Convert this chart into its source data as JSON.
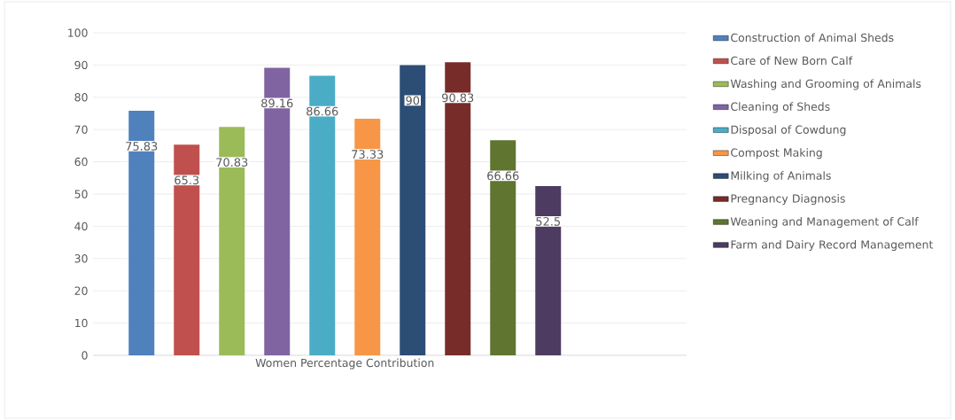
{
  "chart_data": {
    "type": "bar",
    "categories": [
      "Women Percentage Contribution"
    ],
    "series": [
      {
        "name": "Construction of Animal Sheds",
        "color": "#4f81bd",
        "values": [
          75.83
        ]
      },
      {
        "name": "Care of New Born Calf",
        "color": "#c0504d",
        "values": [
          65.3
        ]
      },
      {
        "name": "Washing and Grooming of Animals",
        "color": "#9bbb59",
        "values": [
          70.83
        ]
      },
      {
        "name": "Cleaning of Sheds",
        "color": "#8064a2",
        "values": [
          89.16
        ]
      },
      {
        "name": "Disposal of Cowdung",
        "color": "#4bacc6",
        "values": [
          86.66
        ]
      },
      {
        "name": "Compost Making",
        "color": "#f79646",
        "values": [
          73.33
        ]
      },
      {
        "name": "Milking of Animals",
        "color": "#2c4d75",
        "values": [
          90
        ]
      },
      {
        "name": "Pregnancy Diagnosis",
        "color": "#772c2a",
        "values": [
          90.83
        ]
      },
      {
        "name": "Weaning and Management of Calf",
        "color": "#5f7530",
        "values": [
          66.66
        ]
      },
      {
        "name": "Farm and Dairy Record Management",
        "color": "#4d3b62",
        "values": [
          52.5
        ]
      }
    ],
    "ylim": [
      0,
      100
    ],
    "yticks": [
      0,
      10,
      20,
      30,
      40,
      50,
      60,
      70,
      80,
      90,
      100
    ],
    "grid": "y",
    "legend": "right",
    "value_labels": [
      "75.83",
      "65.3",
      "70.83",
      "89.16",
      "86.66",
      "73.33",
      "90",
      "90.83",
      "66.66",
      "52.5"
    ]
  }
}
